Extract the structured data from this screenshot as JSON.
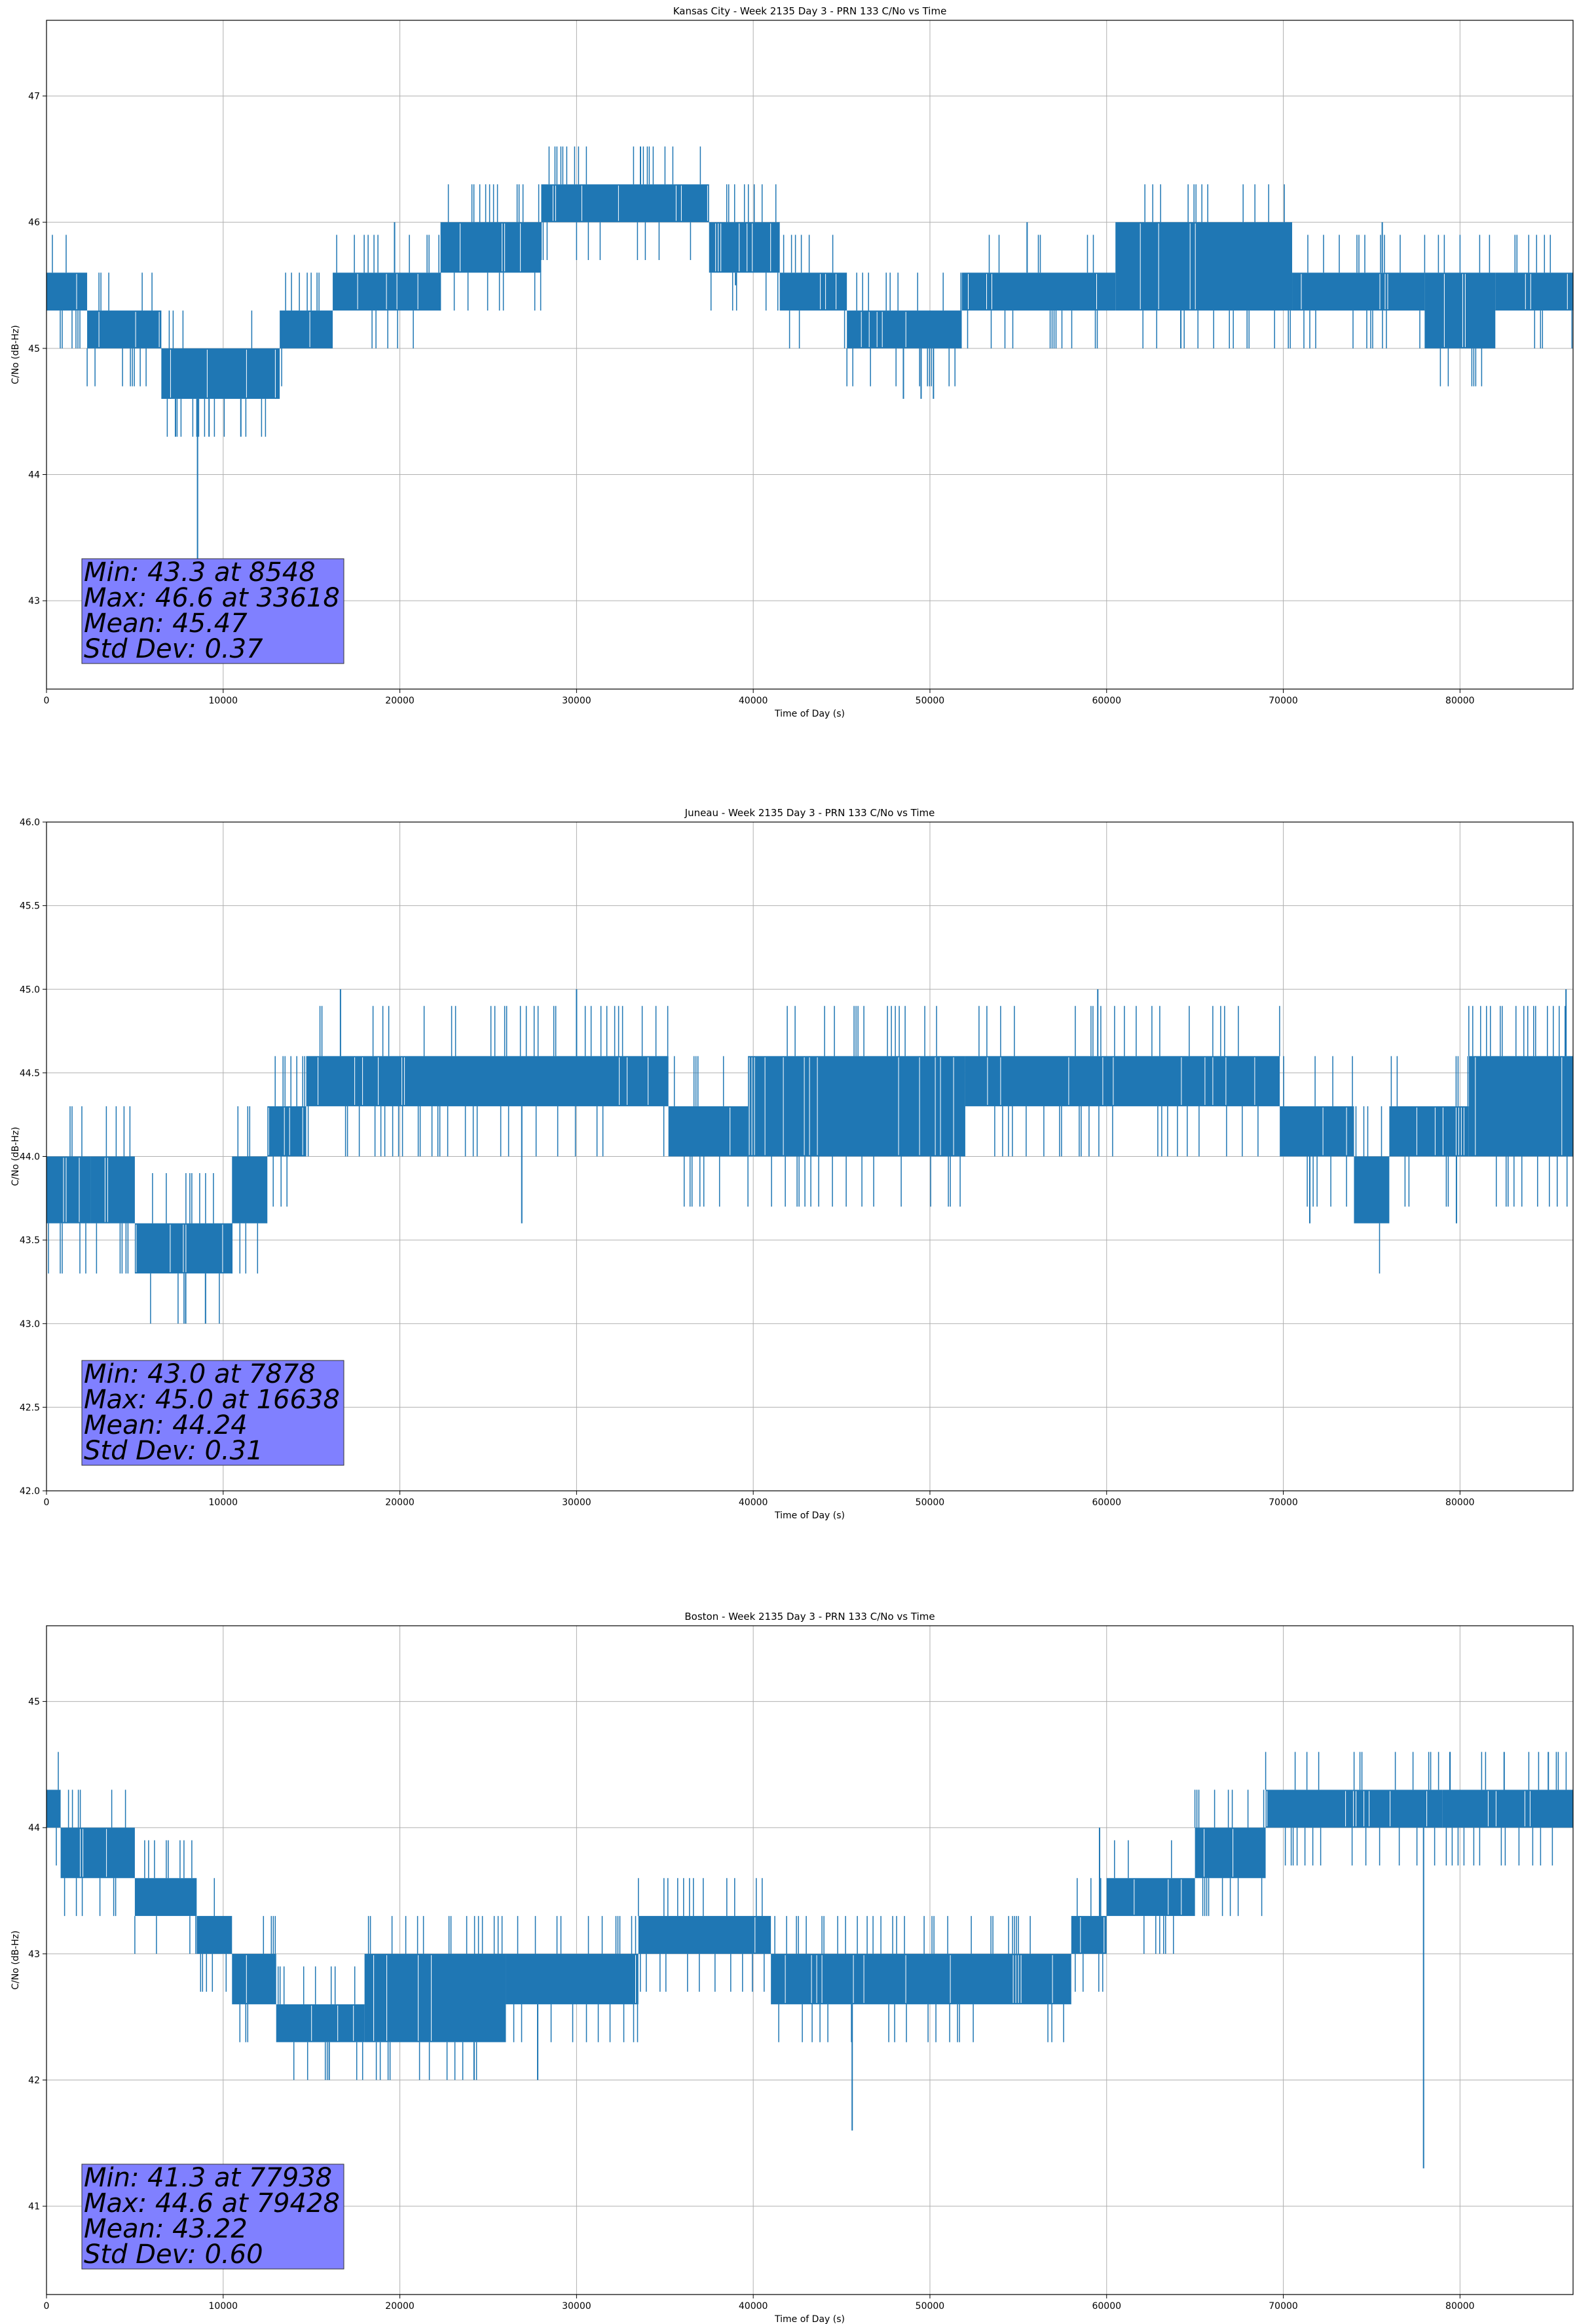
{
  "colors": {
    "line": "#1f77b4",
    "grid": "#b0b0b0",
    "stats_box": "#8080ff",
    "background": "#ffffff"
  },
  "chart_data": [
    {
      "type": "line",
      "title": "Kansas City - Week 2135 Day 3 - PRN 133 C/No vs Time",
      "xlabel": "Time of Day (s)",
      "ylabel": "C/No (dB-Hz)",
      "xlim": [
        0,
        86400
      ],
      "ylim": [
        42.3,
        47.6
      ],
      "xticks": [
        0,
        10000,
        20000,
        30000,
        40000,
        50000,
        60000,
        70000,
        80000
      ],
      "yticks": [
        43,
        44,
        45,
        46,
        47
      ],
      "ytick_decimals": 0,
      "grid": true,
      "stats_lines": [
        "Min: 43.3 at 8548",
        "Max: 46.6 at 33618",
        "Mean: 45.47",
        "Std Dev: 0.37"
      ],
      "stats_position": "bottom-left",
      "series": [
        {
          "bands": [
            {
              "x0": 0,
              "x1": 2300,
              "lo": 45.3,
              "hi": 45.6
            },
            {
              "x0": 2300,
              "x1": 6500,
              "lo": 45.0,
              "hi": 45.3
            },
            {
              "x0": 6500,
              "x1": 13200,
              "lo": 44.6,
              "hi": 45.0
            },
            {
              "x0": 13200,
              "x1": 16200,
              "lo": 45.0,
              "hi": 45.3
            },
            {
              "x0": 16200,
              "x1": 22300,
              "lo": 45.3,
              "hi": 45.6
            },
            {
              "x0": 22300,
              "x1": 28000,
              "lo": 45.6,
              "hi": 46.0
            },
            {
              "x0": 28000,
              "x1": 37500,
              "lo": 46.0,
              "hi": 46.3
            },
            {
              "x0": 37500,
              "x1": 41500,
              "lo": 45.6,
              "hi": 46.0
            },
            {
              "x0": 41500,
              "x1": 45300,
              "lo": 45.3,
              "hi": 45.6
            },
            {
              "x0": 45300,
              "x1": 51800,
              "lo": 45.0,
              "hi": 45.3
            },
            {
              "x0": 51800,
              "x1": 60500,
              "lo": 45.3,
              "hi": 45.6
            },
            {
              "x0": 60500,
              "x1": 70500,
              "lo": 45.3,
              "hi": 46.0
            },
            {
              "x0": 70500,
              "x1": 78000,
              "lo": 45.3,
              "hi": 45.6
            },
            {
              "x0": 78000,
              "x1": 82000,
              "lo": 45.0,
              "hi": 45.6
            },
            {
              "x0": 82000,
              "x1": 86400,
              "lo": 45.3,
              "hi": 45.6
            }
          ],
          "spikes": [
            {
              "x": 8548,
              "y": 43.3
            },
            {
              "x": 33618,
              "y": 46.6
            },
            {
              "x": 7300,
              "y": 44.3
            },
            {
              "x": 9200,
              "y": 44.3
            },
            {
              "x": 11000,
              "y": 44.3
            },
            {
              "x": 19700,
              "y": 46.0
            },
            {
              "x": 39000,
              "y": 45.5
            },
            {
              "x": 48500,
              "y": 44.6
            },
            {
              "x": 49500,
              "y": 44.6
            },
            {
              "x": 50200,
              "y": 44.6
            },
            {
              "x": 55500,
              "y": 46.0
            },
            {
              "x": 64200,
              "y": 45.0
            },
            {
              "x": 75600,
              "y": 46.0
            }
          ]
        }
      ]
    },
    {
      "type": "line",
      "title": "Juneau - Week 2135 Day 3 - PRN 133 C/No vs Time",
      "xlabel": "Time of Day (s)",
      "ylabel": "C/No (dB-Hz)",
      "xlim": [
        0,
        86400
      ],
      "ylim": [
        42.0,
        46.0
      ],
      "xticks": [
        0,
        10000,
        20000,
        30000,
        40000,
        50000,
        60000,
        70000,
        80000
      ],
      "yticks": [
        42.0,
        42.5,
        43.0,
        43.5,
        44.0,
        44.5,
        45.0,
        45.5,
        46.0
      ],
      "ytick_decimals": 1,
      "grid": true,
      "stats_lines": [
        "Min: 43.0 at 7878",
        "Max: 45.0 at 16638",
        "Mean: 44.24",
        "Std Dev: 0.31"
      ],
      "stats_position": "bottom-left",
      "series": [
        {
          "bands": [
            {
              "x0": 0,
              "x1": 2500,
              "lo": 43.6,
              "hi": 44.0
            },
            {
              "x0": 2500,
              "x1": 5000,
              "lo": 43.6,
              "hi": 44.0
            },
            {
              "x0": 5000,
              "x1": 10500,
              "lo": 43.3,
              "hi": 43.6
            },
            {
              "x0": 10500,
              "x1": 12500,
              "lo": 43.6,
              "hi": 44.0
            },
            {
              "x0": 12500,
              "x1": 14700,
              "lo": 44.0,
              "hi": 44.3
            },
            {
              "x0": 14700,
              "x1": 35200,
              "lo": 44.3,
              "hi": 44.6
            },
            {
              "x0": 35200,
              "x1": 39700,
              "lo": 44.0,
              "hi": 44.3
            },
            {
              "x0": 39700,
              "x1": 52000,
              "lo": 44.0,
              "hi": 44.6
            },
            {
              "x0": 52000,
              "x1": 69800,
              "lo": 44.3,
              "hi": 44.6
            },
            {
              "x0": 69800,
              "x1": 74000,
              "lo": 44.0,
              "hi": 44.3
            },
            {
              "x0": 74000,
              "x1": 76000,
              "lo": 43.6,
              "hi": 44.0
            },
            {
              "x0": 76000,
              "x1": 80500,
              "lo": 44.0,
              "hi": 44.3
            },
            {
              "x0": 80500,
              "x1": 86400,
              "lo": 44.0,
              "hi": 44.6
            }
          ],
          "spikes": [
            {
              "x": 7878,
              "y": 43.0
            },
            {
              "x": 9000,
              "y": 43.0
            },
            {
              "x": 16638,
              "y": 45.0
            },
            {
              "x": 26900,
              "y": 43.6
            },
            {
              "x": 30000,
              "y": 45.0
            },
            {
              "x": 59500,
              "y": 45.0
            },
            {
              "x": 86000,
              "y": 45.0
            },
            {
              "x": 71500,
              "y": 43.6
            },
            {
              "x": 79800,
              "y": 43.6
            }
          ]
        }
      ]
    },
    {
      "type": "line",
      "title": "Boston - Week 2135 Day 3 - PRN 133 C/No vs Time",
      "xlabel": "Time of Day (s)",
      "ylabel": "C/No (dB-Hz)",
      "xlim": [
        0,
        86400
      ],
      "ylim": [
        40.3,
        45.6
      ],
      "xticks": [
        0,
        10000,
        20000,
        30000,
        40000,
        50000,
        60000,
        70000,
        80000
      ],
      "yticks": [
        41,
        42,
        43,
        44,
        45
      ],
      "ytick_decimals": 0,
      "grid": true,
      "stats_lines": [
        "Min: 41.3 at 77938",
        "Max: 44.6 at 79428",
        "Mean: 43.22",
        "Std Dev: 0.60"
      ],
      "stats_position": "bottom-left",
      "series": [
        {
          "bands": [
            {
              "x0": 0,
              "x1": 800,
              "lo": 44.0,
              "hi": 44.3
            },
            {
              "x0": 800,
              "x1": 5000,
              "lo": 43.6,
              "hi": 44.0
            },
            {
              "x0": 5000,
              "x1": 8500,
              "lo": 43.3,
              "hi": 43.6
            },
            {
              "x0": 8500,
              "x1": 10500,
              "lo": 43.0,
              "hi": 43.3
            },
            {
              "x0": 10500,
              "x1": 13000,
              "lo": 42.6,
              "hi": 43.0
            },
            {
              "x0": 13000,
              "x1": 18000,
              "lo": 42.3,
              "hi": 42.6
            },
            {
              "x0": 18000,
              "x1": 26000,
              "lo": 42.3,
              "hi": 43.0
            },
            {
              "x0": 26000,
              "x1": 33500,
              "lo": 42.6,
              "hi": 43.0
            },
            {
              "x0": 33500,
              "x1": 41000,
              "lo": 43.0,
              "hi": 43.3
            },
            {
              "x0": 41000,
              "x1": 58000,
              "lo": 42.6,
              "hi": 43.0
            },
            {
              "x0": 58000,
              "x1": 60000,
              "lo": 43.0,
              "hi": 43.3
            },
            {
              "x0": 60000,
              "x1": 65000,
              "lo": 43.3,
              "hi": 43.6
            },
            {
              "x0": 65000,
              "x1": 69000,
              "lo": 43.6,
              "hi": 44.0
            },
            {
              "x0": 69000,
              "x1": 79000,
              "lo": 44.0,
              "hi": 44.3
            },
            {
              "x0": 79000,
              "x1": 86400,
              "lo": 44.0,
              "hi": 44.3
            }
          ],
          "spikes": [
            {
              "x": 77938,
              "y": 41.3
            },
            {
              "x": 45600,
              "y": 41.6
            },
            {
              "x": 16000,
              "y": 42.0
            },
            {
              "x": 24200,
              "y": 42.0
            },
            {
              "x": 27800,
              "y": 42.0
            },
            {
              "x": 59600,
              "y": 44.0
            },
            {
              "x": 79428,
              "y": 44.6
            },
            {
              "x": 82500,
              "y": 44.6
            },
            {
              "x": 85000,
              "y": 44.6
            }
          ]
        }
      ]
    }
  ]
}
